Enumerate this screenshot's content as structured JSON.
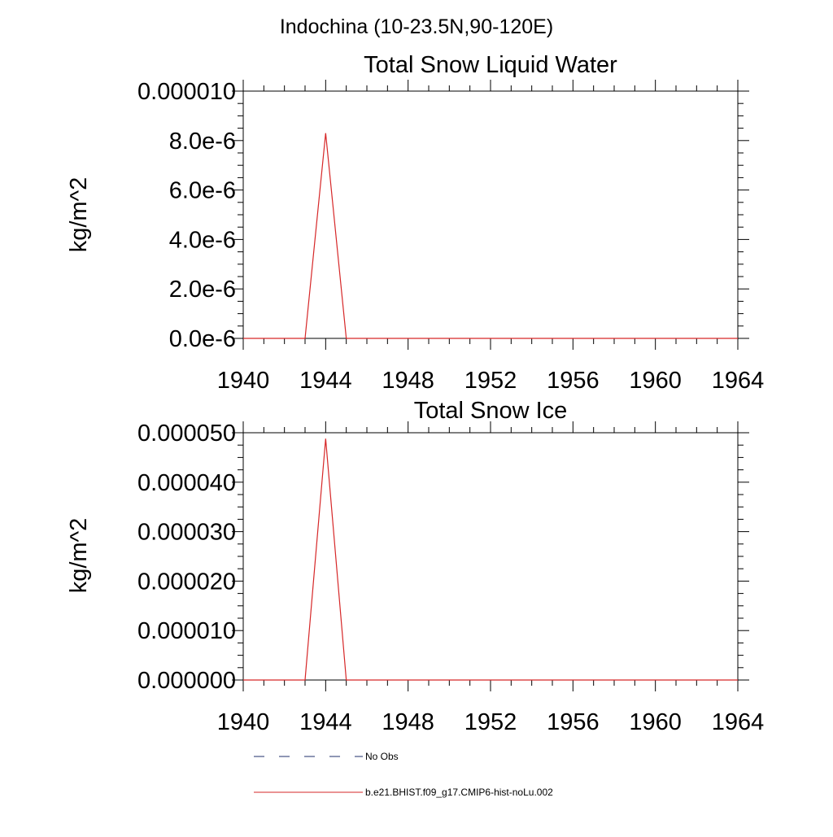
{
  "figure": {
    "suptitle": "Indochina (10-23.5N,90-120E)"
  },
  "chart_data": [
    {
      "type": "line",
      "title": "Total Snow Liquid Water",
      "xlabel": "",
      "ylabel": "kg/m^2",
      "xlim": [
        1940,
        1964
      ],
      "ylim": [
        0,
        1e-05
      ],
      "x_ticks": [
        1940,
        1944,
        1948,
        1952,
        1956,
        1960,
        1964
      ],
      "x_tick_labels": [
        "1940",
        "1944",
        "1948",
        "1952",
        "1956",
        "1960",
        "1964"
      ],
      "y_ticks": [
        0,
        2e-06,
        4e-06,
        6e-06,
        8e-06,
        1e-05
      ],
      "y_tick_labels": [
        "0.0e-6",
        "2.0e-6",
        "4.0e-6",
        "6.0e-6",
        "8.0e-6",
        "0.000010"
      ],
      "x_minor_step": 1,
      "y_minor_step": 5e-07,
      "grid": false,
      "series": [
        {
          "name": "b.e21.BHIST.f09_g17.CMIP6-hist-noLu.002",
          "color": "#d62728",
          "x": [
            1940,
            1941,
            1942,
            1943,
            1944,
            1945,
            1946,
            1947,
            1948,
            1949,
            1950,
            1951,
            1952,
            1953,
            1954,
            1955,
            1956,
            1957,
            1958,
            1959,
            1960,
            1961,
            1962,
            1963,
            1964
          ],
          "y": [
            0,
            0,
            0,
            0,
            8.3e-06,
            0,
            0,
            0,
            0,
            0,
            0,
            0,
            0,
            0,
            0,
            0,
            0,
            0,
            0,
            0,
            0,
            0,
            0,
            0,
            0
          ]
        }
      ]
    },
    {
      "type": "line",
      "title": "Total Snow Ice",
      "xlabel": "",
      "ylabel": "kg/m^2",
      "xlim": [
        1940,
        1964
      ],
      "ylim": [
        0,
        5e-05
      ],
      "x_ticks": [
        1940,
        1944,
        1948,
        1952,
        1956,
        1960,
        1964
      ],
      "x_tick_labels": [
        "1940",
        "1944",
        "1948",
        "1952",
        "1956",
        "1960",
        "1964"
      ],
      "y_ticks": [
        0,
        1e-05,
        2e-05,
        3e-05,
        4e-05,
        5e-05
      ],
      "y_tick_labels": [
        "0.000000",
        "0.000010",
        "0.000020",
        "0.000030",
        "0.000040",
        "0.000050"
      ],
      "x_minor_step": 1,
      "y_minor_step": 2.5e-06,
      "grid": false,
      "series": [
        {
          "name": "b.e21.BHIST.f09_g17.CMIP6-hist-noLu.002",
          "color": "#d62728",
          "x": [
            1940,
            1941,
            1942,
            1943,
            1944,
            1945,
            1946,
            1947,
            1948,
            1949,
            1950,
            1951,
            1952,
            1953,
            1954,
            1955,
            1956,
            1957,
            1958,
            1959,
            1960,
            1961,
            1962,
            1963,
            1964
          ],
          "y": [
            0,
            0,
            0,
            0,
            4.88e-05,
            0,
            0,
            0,
            0,
            0,
            0,
            0,
            0,
            0,
            0,
            0,
            0,
            0,
            0,
            0,
            0,
            0,
            0,
            0,
            0
          ]
        }
      ]
    }
  ],
  "legend": {
    "placement": "bottom",
    "entries": [
      {
        "label": "No Obs",
        "style": "dashed",
        "color": "#1f2f6b"
      },
      {
        "label": "b.e21.BHIST.f09_g17.CMIP6-hist-noLu.002",
        "style": "solid",
        "color": "#d62728"
      }
    ]
  }
}
